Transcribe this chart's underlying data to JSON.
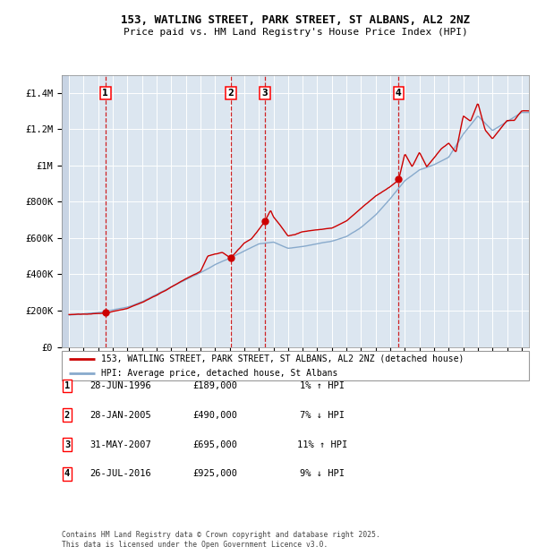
{
  "title_line1": "153, WATLING STREET, PARK STREET, ST ALBANS, AL2 2NZ",
  "title_line2": "Price paid vs. HM Land Registry's House Price Index (HPI)",
  "background_color": "#ffffff",
  "plot_bg_color": "#dce6f0",
  "grid_color": "#ffffff",
  "sale_color": "#cc0000",
  "hpi_color": "#88aacc",
  "sale_marker_dates": [
    1996.49,
    2005.07,
    2007.42,
    2016.57
  ],
  "sale_prices": [
    189000,
    490000,
    695000,
    925000
  ],
  "sale_labels": [
    "1",
    "2",
    "3",
    "4"
  ],
  "legend_sale": "153, WATLING STREET, PARK STREET, ST ALBANS, AL2 2NZ (detached house)",
  "legend_hpi": "HPI: Average price, detached house, St Albans",
  "table_data": [
    [
      "1",
      "28-JUN-1996",
      "£189,000",
      "1% ↑ HPI"
    ],
    [
      "2",
      "28-JAN-2005",
      "£490,000",
      "7% ↓ HPI"
    ],
    [
      "3",
      "31-MAY-2007",
      "£695,000",
      "11% ↑ HPI"
    ],
    [
      "4",
      "26-JUL-2016",
      "£925,000",
      "9% ↓ HPI"
    ]
  ],
  "footer": "Contains HM Land Registry data © Crown copyright and database right 2025.\nThis data is licensed under the Open Government Licence v3.0.",
  "ylim": [
    0,
    1500000
  ],
  "yticks": [
    0,
    200000,
    400000,
    600000,
    800000,
    1000000,
    1200000,
    1400000
  ],
  "ytick_labels": [
    "£0",
    "£200K",
    "£400K",
    "£600K",
    "£800K",
    "£1M",
    "£1.2M",
    "£1.4M"
  ],
  "xmin": 1993.5,
  "xmax": 2025.5,
  "hpi_anchor_years": [
    1994,
    1995,
    1996,
    1997,
    1998,
    1999,
    2000,
    2001,
    2002,
    2003,
    2004,
    2005,
    2006,
    2007,
    2008,
    2009,
    2010,
    2011,
    2012,
    2013,
    2014,
    2015,
    2016,
    2017,
    2018,
    2019,
    2020,
    2021,
    2022,
    2023,
    2024,
    2025
  ],
  "hpi_anchor_vals": [
    175000,
    182000,
    190000,
    205000,
    220000,
    250000,
    290000,
    330000,
    370000,
    410000,
    455000,
    490000,
    530000,
    570000,
    580000,
    545000,
    555000,
    570000,
    585000,
    610000,
    660000,
    730000,
    820000,
    920000,
    980000,
    1010000,
    1050000,
    1180000,
    1280000,
    1200000,
    1250000,
    1300000
  ],
  "sale_anchor_years": [
    1994,
    1995,
    1996,
    1996.49,
    1997,
    1998,
    1999,
    2000,
    2001,
    2002,
    2003,
    2003.5,
    2004,
    2004.5,
    2005.07,
    2005.5,
    2006,
    2006.5,
    2007,
    2007.42,
    2007.8,
    2008,
    2008.5,
    2009,
    2009.5,
    2010,
    2011,
    2012,
    2013,
    2014,
    2015,
    2016,
    2016.57,
    2017,
    2017.5,
    2018,
    2018.5,
    2019,
    2019.5,
    2020,
    2020.5,
    2021,
    2021.5,
    2022,
    2022.5,
    2023,
    2023.5,
    2024,
    2024.5,
    2025
  ],
  "sale_anchor_vals": [
    178000,
    183000,
    187000,
    189000,
    200000,
    218000,
    248000,
    285000,
    330000,
    375000,
    415000,
    500000,
    510000,
    520000,
    490000,
    530000,
    575000,
    600000,
    650000,
    695000,
    755000,
    720000,
    670000,
    615000,
    625000,
    640000,
    650000,
    660000,
    700000,
    770000,
    840000,
    890000,
    925000,
    1070000,
    1000000,
    1080000,
    1000000,
    1050000,
    1100000,
    1130000,
    1080000,
    1280000,
    1250000,
    1350000,
    1200000,
    1150000,
    1200000,
    1250000,
    1250000,
    1300000
  ]
}
